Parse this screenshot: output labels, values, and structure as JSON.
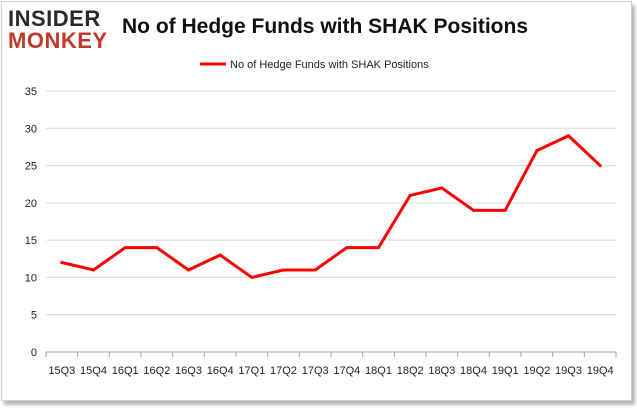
{
  "logo": {
    "top": "INSIDER",
    "bottom": "MONKEY"
  },
  "header": {
    "title": "No of Hedge Funds with SHAK Positions"
  },
  "chart_data": {
    "type": "line",
    "title": "No of Hedge Funds with SHAK Positions",
    "xlabel": "",
    "ylabel": "",
    "categories": [
      "15Q3",
      "15Q4",
      "16Q1",
      "16Q2",
      "16Q3",
      "16Q4",
      "17Q1",
      "17Q2",
      "17Q3",
      "17Q4",
      "18Q1",
      "18Q2",
      "18Q3",
      "18Q4",
      "19Q1",
      "19Q2",
      "19Q3",
      "19Q4"
    ],
    "series": [
      {
        "name": "No of Hedge Funds with SHAK Positions",
        "values": [
          12,
          11,
          14,
          14,
          11,
          13,
          10,
          11,
          11,
          14,
          14,
          21,
          22,
          19,
          19,
          27,
          29,
          25
        ],
        "color": "#ff0000"
      }
    ],
    "ylim": [
      0,
      35
    ],
    "yticks": [
      0,
      5,
      10,
      15,
      20,
      25,
      30,
      35
    ],
    "grid": true,
    "legend_position": "top-center"
  }
}
